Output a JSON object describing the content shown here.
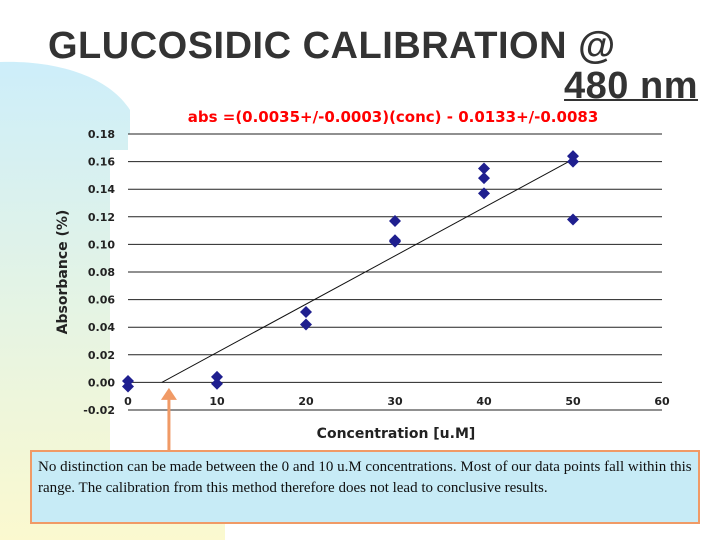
{
  "slide": {
    "title_line1": "GLUCOSIDIC CALIBRATION @",
    "title_line2": "480 nm"
  },
  "colors": {
    "equation": "#ff0000",
    "marker": "#1f1f8f",
    "axis_text": "#222222",
    "callout_fill": "#c7ebf6",
    "callout_border": "#f09a66",
    "arrow": "#f09a66",
    "background_yellow": "#fbf9cf",
    "background_blue": "#cdeefa"
  },
  "chart_data": {
    "type": "scatter",
    "equation": "abs =(0.0035+/-0.0003)(conc) - 0.0133+/-0.0083",
    "xlabel": "Concentration [u.M]",
    "ylabel": "Absorbance (%)",
    "xlim": [
      0,
      60
    ],
    "ylim": [
      -0.02,
      0.18
    ],
    "grid": true,
    "x_ticks": [
      "0",
      "10",
      "20",
      "30",
      "40",
      "50",
      "60"
    ],
    "y_ticks": [
      "0.18",
      "0.16",
      "0.14",
      "0.12",
      "0.10",
      "0.08",
      "0.06",
      "0.04",
      "0.02",
      "0.00",
      "-0.02"
    ],
    "points": [
      {
        "x": 0,
        "y": 0.001
      },
      {
        "x": 0,
        "y": -0.003
      },
      {
        "x": 10,
        "y": 0.004
      },
      {
        "x": 10,
        "y": -0.001
      },
      {
        "x": 20,
        "y": 0.051
      },
      {
        "x": 20,
        "y": 0.042
      },
      {
        "x": 30,
        "y": 0.117
      },
      {
        "x": 30,
        "y": 0.103
      },
      {
        "x": 30,
        "y": 0.102
      },
      {
        "x": 40,
        "y": 0.155
      },
      {
        "x": 40,
        "y": 0.148
      },
      {
        "x": 40,
        "y": 0.137
      },
      {
        "x": 50,
        "y": 0.164
      },
      {
        "x": 50,
        "y": 0.16
      },
      {
        "x": 50,
        "y": 0.118
      }
    ],
    "fit": {
      "slope": 0.0035,
      "intercept": -0.0133
    },
    "annotation_arrow": {
      "from": {
        "x": 4.6,
        "y": -0.065
      },
      "to": {
        "x": 4.6,
        "y": -0.004
      }
    }
  },
  "callout": {
    "text": "No distinction can be made between the 0 and 10 u.M concentrations.  Most of our data points fall within this range.  The calibration from this method therefore does not lead to conclusive results."
  }
}
